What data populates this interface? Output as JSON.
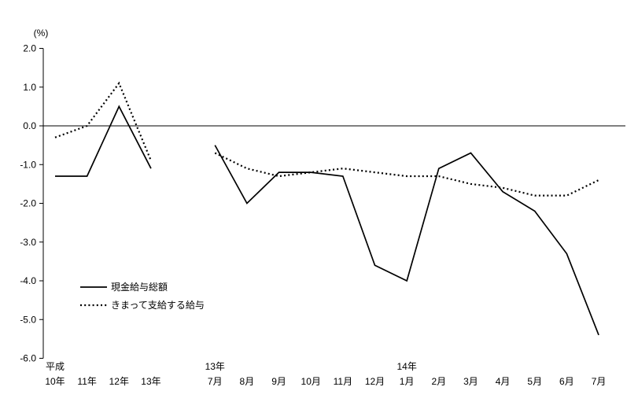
{
  "page": {
    "background": "#ffffff",
    "line_color": "#000000"
  },
  "chart_data": {
    "type": "line",
    "title": "",
    "unit_label": "(%)",
    "ylabel": "(%)",
    "xlabel": "",
    "ylim": [
      -6.0,
      2.0
    ],
    "grid": false,
    "legend_position": "inside-left-bottom",
    "ytick_labels": [
      "2.0",
      "1.0",
      "0.0",
      "-1.0",
      "-2.0",
      "-3.0",
      "-4.0",
      "-5.0",
      "-6.0"
    ],
    "x_slots": 18,
    "x_labels_top": [
      {
        "slot": 0,
        "text": "平成"
      },
      {
        "slot": 5,
        "text": "13年"
      },
      {
        "slot": 11,
        "text": "14年"
      }
    ],
    "x_labels_bottom": [
      {
        "slot": 0,
        "text": "10年"
      },
      {
        "slot": 1,
        "text": "11年"
      },
      {
        "slot": 2,
        "text": "12年"
      },
      {
        "slot": 3,
        "text": "13年"
      },
      {
        "slot": 5,
        "text": "7月"
      },
      {
        "slot": 6,
        "text": "8月"
      },
      {
        "slot": 7,
        "text": "9月"
      },
      {
        "slot": 8,
        "text": "10月"
      },
      {
        "slot": 9,
        "text": "11月"
      },
      {
        "slot": 10,
        "text": "12月"
      },
      {
        "slot": 11,
        "text": "1月"
      },
      {
        "slot": 12,
        "text": "2月"
      },
      {
        "slot": 13,
        "text": "3月"
      },
      {
        "slot": 14,
        "text": "4月"
      },
      {
        "slot": 15,
        "text": "5月"
      },
      {
        "slot": 16,
        "text": "6月"
      },
      {
        "slot": 17,
        "text": "7月"
      }
    ],
    "series": [
      {
        "name": "現金給与総額",
        "style": "solid",
        "color": "#000000",
        "points": [
          [
            0,
            -1.3
          ],
          [
            1,
            -1.3
          ],
          [
            2,
            0.5
          ],
          [
            3,
            -1.1
          ],
          [
            5,
            -0.5
          ],
          [
            6,
            -2.0
          ],
          [
            7,
            -1.2
          ],
          [
            8,
            -1.2
          ],
          [
            9,
            -1.3
          ],
          [
            10,
            -3.6
          ],
          [
            11,
            -4.0
          ],
          [
            12,
            -1.1
          ],
          [
            13,
            -0.7
          ],
          [
            14,
            -1.7
          ],
          [
            15,
            -2.2
          ],
          [
            16,
            -3.3
          ],
          [
            17,
            -5.4
          ]
        ]
      },
      {
        "name": "きまって支給する給与",
        "style": "dotted",
        "color": "#000000",
        "points": [
          [
            0,
            -0.3
          ],
          [
            1,
            0.0
          ],
          [
            2,
            1.1
          ],
          [
            3,
            -0.9
          ],
          [
            5,
            -0.7
          ],
          [
            6,
            -1.1
          ],
          [
            7,
            -1.3
          ],
          [
            8,
            -1.2
          ],
          [
            9,
            -1.1
          ],
          [
            10,
            -1.2
          ],
          [
            11,
            -1.3
          ],
          [
            12,
            -1.3
          ],
          [
            13,
            -1.5
          ],
          [
            14,
            -1.6
          ],
          [
            15,
            -1.8
          ],
          [
            16,
            -1.8
          ],
          [
            17,
            -1.4
          ]
        ]
      }
    ]
  }
}
